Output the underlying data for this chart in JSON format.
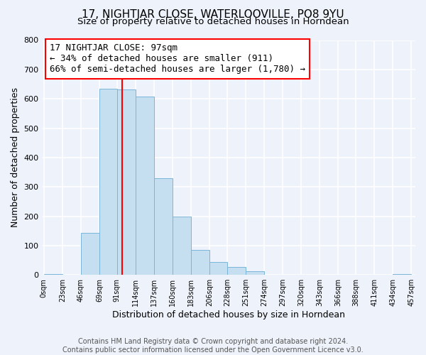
{
  "title": "17, NIGHTJAR CLOSE, WATERLOOVILLE, PO8 9YU",
  "subtitle": "Size of property relative to detached houses in Horndean",
  "xlabel": "Distribution of detached houses by size in Horndean",
  "ylabel": "Number of detached properties",
  "bar_color": "#c5dff0",
  "bar_edge_color": "#7ab5d8",
  "background_color": "#eef2fa",
  "grid_color": "white",
  "bin_edges": [
    0,
    23,
    46,
    69,
    91,
    114,
    137,
    160,
    183,
    206,
    228,
    251,
    274,
    297,
    320,
    343,
    366,
    388,
    411,
    434,
    457
  ],
  "bin_labels": [
    "0sqm",
    "23sqm",
    "46sqm",
    "69sqm",
    "91sqm",
    "114sqm",
    "137sqm",
    "160sqm",
    "183sqm",
    "206sqm",
    "228sqm",
    "251sqm",
    "274sqm",
    "297sqm",
    "320sqm",
    "343sqm",
    "366sqm",
    "388sqm",
    "411sqm",
    "434sqm",
    "457sqm"
  ],
  "counts": [
    2,
    0,
    143,
    635,
    632,
    608,
    330,
    200,
    84,
    43,
    27,
    12,
    0,
    0,
    0,
    0,
    0,
    0,
    0,
    4
  ],
  "vline_x": 97,
  "vline_color": "red",
  "annotation_line1": "17 NIGHTJAR CLOSE: 97sqm",
  "annotation_line2": "← 34% of detached houses are smaller (911)",
  "annotation_line3": "66% of semi-detached houses are larger (1,780) →",
  "ylim": [
    0,
    800
  ],
  "yticks": [
    0,
    100,
    200,
    300,
    400,
    500,
    600,
    700,
    800
  ],
  "footer_text": "Contains HM Land Registry data © Crown copyright and database right 2024.\nContains public sector information licensed under the Open Government Licence v3.0.",
  "title_fontsize": 11,
  "subtitle_fontsize": 9.5,
  "xlabel_fontsize": 9,
  "ylabel_fontsize": 9,
  "annotation_fontsize": 9,
  "footer_fontsize": 7
}
